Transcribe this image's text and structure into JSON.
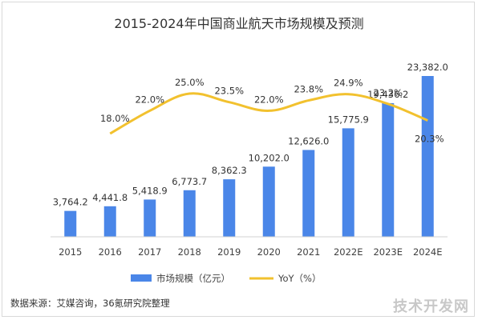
{
  "chart_data": {
    "type": "bar",
    "title": "2015-2024年中国商业航天市场规模及预测",
    "categories": [
      "2015",
      "2016",
      "2017",
      "2018",
      "2019",
      "2020",
      "2021",
      "2022E",
      "2023E",
      "2024E"
    ],
    "series": [
      {
        "name": "市场规模（亿元）",
        "type": "bar",
        "color": "#4a86e8",
        "values": [
          3764.2,
          4441.8,
          5418.9,
          6773.7,
          8362.3,
          10202.0,
          12626.0,
          15775.9,
          19436.2,
          23382.0
        ],
        "labels": [
          "3,764.2",
          "4,441.8",
          "5,418.9",
          "6,773.7",
          "8,362.3",
          "10,202.0",
          "12,626.0",
          "15,775.9",
          "19,436.2",
          "23,382.0"
        ]
      },
      {
        "name": "YoY（%）",
        "type": "line",
        "color": "#f2c12e",
        "values": [
          null,
          18.0,
          22.0,
          25.0,
          23.5,
          22.0,
          23.8,
          24.9,
          23.2,
          20.3
        ],
        "labels": [
          "",
          "18.0%",
          "22.0%",
          "25.0%",
          "23.5%",
          "22.0%",
          "23.8%",
          "24.9%",
          "23.2%",
          "20.3%"
        ]
      }
    ],
    "legend_position": "bottom",
    "grid": false
  },
  "source": "数据来源：艾媒咨询，36氪研究院整理",
  "watermark": "技术开发网"
}
